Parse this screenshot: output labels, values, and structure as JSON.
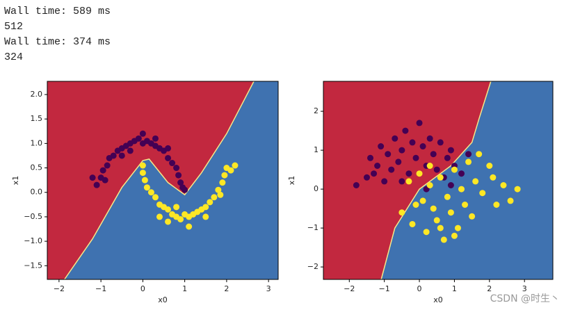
{
  "output_lines": [
    "Wall time: 589 ms",
    "512",
    "Wall time: 374 ms",
    "324"
  ],
  "watermark": "CSDN @时生丶",
  "chart_data": [
    {
      "type": "scatter",
      "xlabel": "x0",
      "ylabel": "x1",
      "xlim": [
        -2.28,
        3.23
      ],
      "ylim": [
        -1.78,
        2.27
      ],
      "xticks": [
        {
          "value": -2,
          "label": "−2"
        },
        {
          "value": -1,
          "label": "−1"
        },
        0,
        1,
        2,
        3
      ],
      "yticks": [
        {
          "value": -1.5,
          "label": "−1.5"
        },
        {
          "value": -1,
          "label": "−1.0"
        },
        {
          "value": -0.5,
          "label": "−0.5"
        },
        {
          "value": 0,
          "label": "0.0"
        },
        {
          "value": 0.5,
          "label": "0.5"
        },
        {
          "value": 1,
          "label": "1.0"
        },
        {
          "value": 1.5,
          "label": "1.5"
        },
        {
          "value": 2,
          "label": "2.0"
        }
      ],
      "region_colors": [
        "#c2283f",
        "#3f72b0"
      ],
      "boundary_color": "#f5e88a",
      "decision_boundary": {
        "x": [
          -1.87,
          -1.2,
          -0.5,
          0,
          0.15,
          0.6,
          1.0,
          1.4,
          2.0,
          2.65
        ],
        "y": [
          -1.78,
          -0.95,
          0.1,
          0.65,
          0.68,
          0.2,
          -0.05,
          0.4,
          1.2,
          2.27
        ]
      },
      "series": [
        {
          "color": "#440154",
          "x": [
            -1.1,
            -1.0,
            -0.95,
            -0.85,
            -0.8,
            -0.7,
            -0.6,
            -0.5,
            -0.4,
            -0.3,
            -0.2,
            -0.1,
            0.0,
            0.1,
            0.2,
            0.3,
            0.4,
            0.5,
            0.6,
            0.7,
            0.8,
            0.85,
            0.9,
            1.0,
            -0.3,
            0.0,
            -0.5,
            0.3,
            0.6,
            -0.9,
            -1.2,
            0.95
          ],
          "values": [
            0.15,
            0.3,
            0.45,
            0.55,
            0.7,
            0.75,
            0.85,
            0.9,
            0.95,
            1.0,
            1.05,
            1.1,
            1.0,
            1.05,
            1.0,
            0.95,
            0.9,
            0.85,
            0.7,
            0.6,
            0.5,
            0.35,
            0.2,
            0.05,
            0.85,
            1.2,
            0.75,
            1.1,
            0.9,
            0.25,
            0.3,
            0.1
          ]
        },
        {
          "color": "#fde725",
          "x": [
            0.0,
            0.0,
            0.05,
            0.1,
            0.2,
            0.3,
            0.4,
            0.5,
            0.6,
            0.7,
            0.8,
            0.9,
            1.0,
            1.1,
            1.2,
            1.3,
            1.4,
            1.5,
            1.6,
            1.7,
            1.8,
            1.9,
            1.95,
            2.0,
            2.1,
            0.6,
            0.8,
            1.1,
            1.5,
            2.2,
            0.4,
            1.85
          ],
          "values": [
            0.55,
            0.4,
            0.25,
            0.1,
            0.0,
            -0.1,
            -0.25,
            -0.3,
            -0.35,
            -0.45,
            -0.5,
            -0.55,
            -0.45,
            -0.5,
            -0.45,
            -0.4,
            -0.35,
            -0.3,
            -0.2,
            -0.1,
            0.05,
            0.2,
            0.35,
            0.5,
            0.45,
            -0.6,
            -0.3,
            -0.7,
            -0.5,
            0.55,
            -0.5,
            -0.05
          ]
        }
      ]
    },
    {
      "type": "scatter",
      "xlabel": "x0",
      "ylabel": "x1",
      "xlim": [
        -2.74,
        3.81
      ],
      "ylim": [
        -2.32,
        2.77
      ],
      "xticks": [
        {
          "value": -2,
          "label": "−2"
        },
        {
          "value": -1,
          "label": "−1"
        },
        0,
        1,
        2,
        3
      ],
      "yticks": [
        {
          "value": -2,
          "label": "−2"
        },
        {
          "value": -1,
          "label": "−1"
        },
        0,
        1,
        2
      ],
      "region_colors": [
        "#c2283f",
        "#3f72b0"
      ],
      "boundary_color": "#f5e88a",
      "decision_boundary": {
        "x": [
          -1.09,
          -0.7,
          0,
          0.9,
          1.5,
          1.7,
          2.04
        ],
        "y": [
          -2.32,
          -1.0,
          0,
          0.6,
          1.2,
          1.8,
          2.77
        ]
      },
      "series": [
        {
          "color": "#440154",
          "x": [
            -1.8,
            -1.5,
            -1.4,
            -1.2,
            -1.1,
            -1.0,
            -0.9,
            -0.8,
            -0.7,
            -0.6,
            -0.5,
            -0.4,
            -0.3,
            -0.2,
            -0.1,
            0.0,
            0.1,
            0.2,
            0.3,
            0.4,
            0.5,
            0.6,
            0.7,
            0.8,
            0.9,
            1.0,
            1.2,
            1.4,
            -0.5,
            0.2,
            -1.3,
            0.9
          ],
          "values": [
            0.1,
            0.3,
            0.8,
            0.6,
            1.1,
            0.2,
            0.9,
            0.5,
            1.3,
            0.7,
            1.0,
            1.5,
            0.4,
            1.2,
            0.8,
            1.7,
            1.1,
            0.6,
            1.3,
            0.9,
            0.5,
            1.2,
            0.3,
            0.8,
            0.1,
            0.6,
            0.4,
            0.9,
            0.2,
            0.0,
            0.4,
            1.0
          ]
        },
        {
          "color": "#fde725",
          "x": [
            -0.5,
            -0.3,
            -0.2,
            0.0,
            0.1,
            0.2,
            0.3,
            0.4,
            0.5,
            0.6,
            0.7,
            0.8,
            0.9,
            1.0,
            1.1,
            1.2,
            1.3,
            1.4,
            1.5,
            1.6,
            1.8,
            2.0,
            2.2,
            2.4,
            2.6,
            2.8,
            0.6,
            1.0,
            0.3,
            1.7,
            2.1,
            -0.1
          ],
          "values": [
            -0.6,
            0.2,
            -0.9,
            0.4,
            -0.3,
            -1.1,
            0.1,
            -0.5,
            -0.8,
            0.3,
            -1.3,
            -0.2,
            -0.6,
            0.5,
            -1.0,
            0.0,
            -0.4,
            0.7,
            -0.7,
            0.2,
            -0.1,
            0.6,
            -0.4,
            0.1,
            -0.3,
            0.0,
            -1.0,
            -1.2,
            0.6,
            0.9,
            0.3,
            -0.4
          ]
        }
      ]
    }
  ]
}
